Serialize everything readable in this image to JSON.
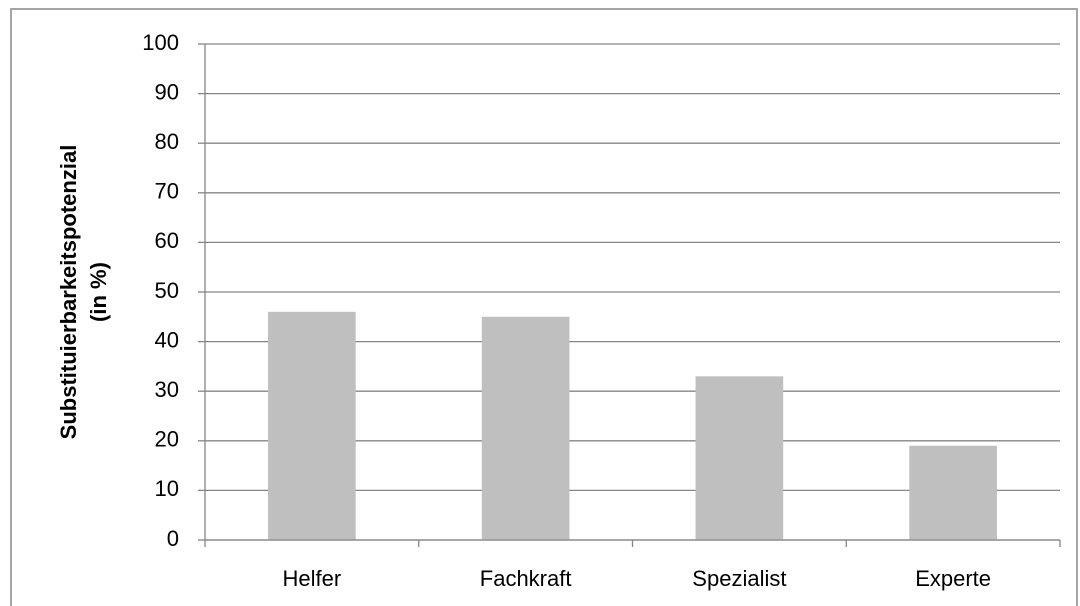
{
  "chart_data": {
    "type": "bar",
    "y_label": [
      "Substituierbarkeitspotenzial",
      "(in %)"
    ],
    "categories": [
      "Helfer",
      "Fachkraft",
      "Spezialist",
      "Experte"
    ],
    "values": [
      46,
      45,
      33,
      19
    ],
    "color": "#bfbfbf",
    "ylim": [
      0,
      100
    ],
    "yticks": [
      0,
      10,
      20,
      30,
      40,
      50,
      60,
      70,
      80,
      90,
      100
    ],
    "grid": true
  }
}
